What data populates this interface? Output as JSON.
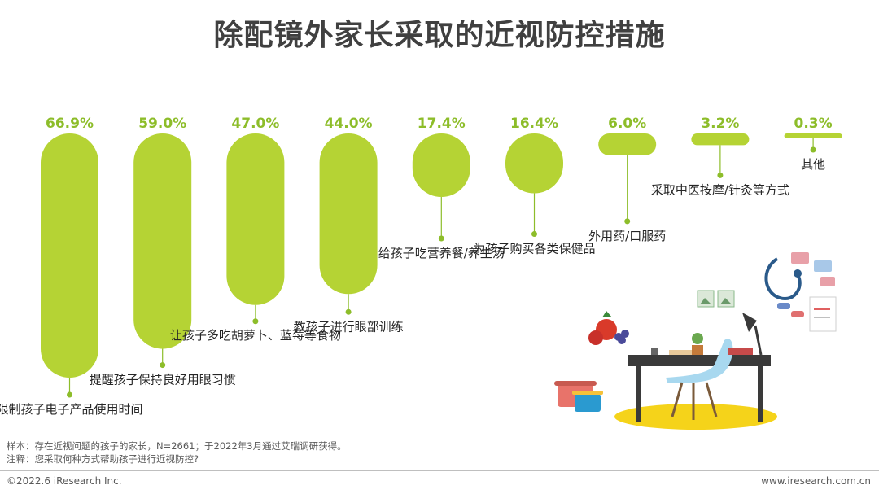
{
  "title": "除配镜外家长采取的近视防控措施",
  "chart_data": {
    "type": "bar",
    "title": "除配镜外家长采取的近视防控措施",
    "categories": [
      "限制孩子电子产品使用时间",
      "提醒孩子保持良好用眼习惯",
      "让孩子多吃胡萝卜、蓝莓等食物",
      "教孩子进行眼部训练",
      "给孩子吃营养餐/养生汤",
      "为孩子购买各类保健品",
      "外用药/口服药",
      "采取中医按摩/针灸等方式",
      "其他"
    ],
    "values": [
      66.9,
      59.0,
      47.0,
      44.0,
      17.4,
      16.4,
      6.0,
      3.2,
      0.3
    ],
    "value_labels": [
      "66.9%",
      "59.0%",
      "47.0%",
      "44.0%",
      "17.4%",
      "16.4%",
      "6.0%",
      "3.2%",
      "0.3%"
    ],
    "unit": "%",
    "bar_color": "#b5d334",
    "value_color": "#8dbd2a",
    "ylim": [
      0,
      66.9
    ],
    "grid": false
  },
  "notes": {
    "sample": "样本：存在近视问题的孩子的家长，N=2661；于2022年3月通过艾瑞调研获得。",
    "question": "注释：您采取何种方式帮助孩子进行近视防控?"
  },
  "footer": {
    "copyright": "©2022.6 iResearch Inc.",
    "website": "www.iresearch.com.cn"
  }
}
